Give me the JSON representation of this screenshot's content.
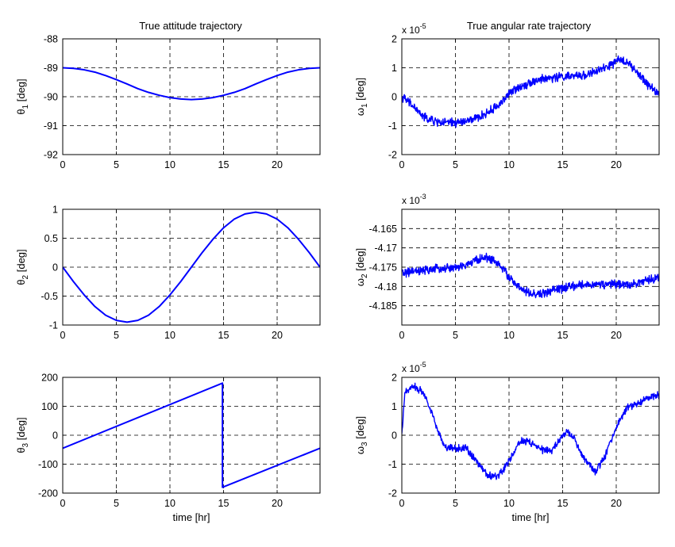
{
  "titles": {
    "left": "True attitude trajectory",
    "right": "True angular rate trajectory"
  },
  "chart_data": [
    {
      "id": "theta1",
      "type": "line",
      "ylabel_sym": "θ",
      "ylabel_sub": "1",
      "ylabel_unit": " [deg]",
      "xlabel": "",
      "xlim": [
        0,
        24
      ],
      "ylim": [
        -92,
        -88
      ],
      "xticks": [
        0,
        5,
        10,
        15,
        20
      ],
      "xtick_labels": [
        "0",
        "5",
        "10",
        "15",
        "20"
      ],
      "yticks": [
        -88,
        -89,
        -90,
        -91,
        -92
      ],
      "ytick_labels": [
        "-88",
        "-89",
        "-90",
        "-91",
        "-92"
      ],
      "exponent": null,
      "grid": true,
      "series": [
        {
          "color": "#0000ff",
          "x": [
            0,
            1,
            2,
            3,
            4,
            5,
            6,
            7,
            8,
            9,
            10,
            11,
            12,
            13,
            14,
            15,
            16,
            17,
            18,
            19,
            20,
            21,
            22,
            23,
            24
          ],
          "y": [
            -89,
            -89.02,
            -89.07,
            -89.15,
            -89.27,
            -89.41,
            -89.56,
            -89.72,
            -89.85,
            -89.95,
            -90.03,
            -90.08,
            -90.1,
            -90.08,
            -90.03,
            -89.95,
            -89.85,
            -89.72,
            -89.56,
            -89.41,
            -89.27,
            -89.15,
            -89.07,
            -89.02,
            -89
          ]
        }
      ]
    },
    {
      "id": "omega1",
      "type": "line",
      "ylabel_sym": "ω",
      "ylabel_sub": "1",
      "ylabel_unit": " [deg]",
      "xlabel": "",
      "xlim": [
        0,
        24
      ],
      "ylim": [
        -2,
        2
      ],
      "xticks": [
        0,
        5,
        10,
        15,
        20
      ],
      "xtick_labels": [
        "0",
        "5",
        "10",
        "15",
        "20"
      ],
      "yticks": [
        2,
        1,
        0,
        -1,
        -2
      ],
      "ytick_labels": [
        "2",
        "1",
        "0",
        "-1",
        "-2"
      ],
      "exponent": {
        "base": "x 10",
        "power": "-5"
      },
      "grid": true,
      "series": [
        {
          "color": "#0000ff",
          "noise": 0.12,
          "x": [
            0,
            1,
            2,
            3,
            4,
            5,
            6,
            7,
            8,
            9,
            10,
            11,
            12,
            13,
            14,
            15,
            16,
            17,
            18,
            19,
            20,
            20.5,
            21,
            22,
            23,
            24
          ],
          "y": [
            0,
            -0.3,
            -0.7,
            -0.85,
            -0.9,
            -0.9,
            -0.85,
            -0.75,
            -0.55,
            -0.3,
            0.1,
            0.35,
            0.5,
            0.6,
            0.65,
            0.7,
            0.7,
            0.75,
            0.85,
            1.0,
            1.2,
            1.3,
            1.2,
            0.8,
            0.4,
            0.1
          ]
        }
      ]
    },
    {
      "id": "theta2",
      "type": "line",
      "ylabel_sym": "θ",
      "ylabel_sub": "2",
      "ylabel_unit": " [deg]",
      "xlabel": "",
      "xlim": [
        0,
        24
      ],
      "ylim": [
        -1,
        1
      ],
      "xticks": [
        0,
        5,
        10,
        15,
        20
      ],
      "xtick_labels": [
        "0",
        "5",
        "10",
        "15",
        "20"
      ],
      "yticks": [
        1,
        0.5,
        0,
        -0.5,
        -1
      ],
      "ytick_labels": [
        "1",
        "0.5",
        "0",
        "-0.5",
        "-1"
      ],
      "exponent": null,
      "grid": true,
      "series": [
        {
          "color": "#0000ff",
          "x": [
            0,
            1,
            2,
            3,
            4,
            5,
            6,
            7,
            8,
            9,
            10,
            11,
            12,
            13,
            14,
            15,
            16,
            17,
            18,
            19,
            20,
            21,
            22,
            23,
            24
          ],
          "y": [
            0,
            -0.25,
            -0.48,
            -0.68,
            -0.83,
            -0.92,
            -0.95,
            -0.92,
            -0.83,
            -0.68,
            -0.48,
            -0.25,
            0,
            0.25,
            0.48,
            0.68,
            0.83,
            0.92,
            0.95,
            0.92,
            0.83,
            0.68,
            0.48,
            0.25,
            0
          ]
        }
      ]
    },
    {
      "id": "omega2",
      "type": "line",
      "ylabel_sym": "ω",
      "ylabel_sub": "2",
      "ylabel_unit": " [deg]",
      "xlabel": "",
      "xlim": [
        0,
        24
      ],
      "ylim": [
        -4.19,
        -4.16
      ],
      "xticks": [
        0,
        5,
        10,
        15,
        20
      ],
      "xtick_labels": [
        "0",
        "5",
        "10",
        "15",
        "20"
      ],
      "yticks": [
        -4.165,
        -4.17,
        -4.175,
        -4.18,
        -4.185
      ],
      "ytick_labels": [
        "-4.165",
        "-4.17",
        "-4.175",
        "-4.18",
        "-4.185"
      ],
      "exponent": {
        "base": "x 10",
        "power": "-3"
      },
      "grid": true,
      "series": [
        {
          "color": "#0000ff",
          "noise": 0.0009,
          "x": [
            0,
            1,
            2,
            3,
            4,
            5,
            6,
            7,
            8,
            9,
            10,
            11,
            12,
            13,
            14,
            15,
            16,
            17,
            18,
            19,
            20,
            21,
            22,
            23,
            24
          ],
          "y": [
            -4.1765,
            -4.1762,
            -4.176,
            -4.1755,
            -4.1753,
            -4.1752,
            -4.1745,
            -4.173,
            -4.1725,
            -4.174,
            -4.1775,
            -4.1805,
            -4.182,
            -4.182,
            -4.181,
            -4.1805,
            -4.18,
            -4.1795,
            -4.1795,
            -4.1795,
            -4.1795,
            -4.1795,
            -4.179,
            -4.1785,
            -4.1775
          ]
        }
      ]
    },
    {
      "id": "theta3",
      "type": "line",
      "ylabel_sym": "θ",
      "ylabel_sub": "3",
      "ylabel_unit": " [deg]",
      "xlabel": "time [hr]",
      "xlim": [
        0,
        24
      ],
      "ylim": [
        -200,
        200
      ],
      "xticks": [
        0,
        5,
        10,
        15,
        20
      ],
      "xtick_labels": [
        "0",
        "5",
        "10",
        "15",
        "20"
      ],
      "yticks": [
        200,
        100,
        0,
        -100,
        -200
      ],
      "ytick_labels": [
        "200",
        "100",
        "0",
        "-100",
        "-200"
      ],
      "exponent": null,
      "grid": true,
      "series": [
        {
          "color": "#0000ff",
          "x": [
            0,
            14.9,
            14.9,
            24
          ],
          "y": [
            -45,
            180,
            -180,
            -45
          ]
        }
      ]
    },
    {
      "id": "omega3",
      "type": "line",
      "ylabel_sym": "ω",
      "ylabel_sub": "3",
      "ylabel_unit": " [deg]",
      "xlabel": "time [hr]",
      "xlim": [
        0,
        24
      ],
      "ylim": [
        -2,
        2
      ],
      "xticks": [
        0,
        5,
        10,
        15,
        20
      ],
      "xtick_labels": [
        "0",
        "5",
        "10",
        "15",
        "20"
      ],
      "yticks": [
        2,
        1,
        0,
        -1,
        -2
      ],
      "ytick_labels": [
        "2",
        "1",
        "0",
        "-1",
        "-2"
      ],
      "exponent": {
        "base": "x 10",
        "power": "-5"
      },
      "grid": true,
      "series": [
        {
          "color": "#0000ff",
          "noise": 0.1,
          "x": [
            0,
            0.3,
            1,
            2,
            3,
            3.5,
            4,
            5,
            6,
            7,
            8,
            9,
            10,
            11,
            12,
            13,
            14,
            15,
            15.5,
            16,
            17,
            18,
            19,
            20,
            21,
            22,
            23,
            24
          ],
          "y": [
            0,
            1.5,
            1.7,
            1.5,
            0.6,
            0,
            -0.4,
            -0.45,
            -0.45,
            -0.9,
            -1.4,
            -1.4,
            -0.9,
            -0.2,
            -0.25,
            -0.5,
            -0.55,
            0,
            0.1,
            -0.1,
            -0.8,
            -1.3,
            -0.7,
            0.3,
            0.95,
            1.1,
            1.3,
            1.4
          ]
        }
      ]
    }
  ]
}
